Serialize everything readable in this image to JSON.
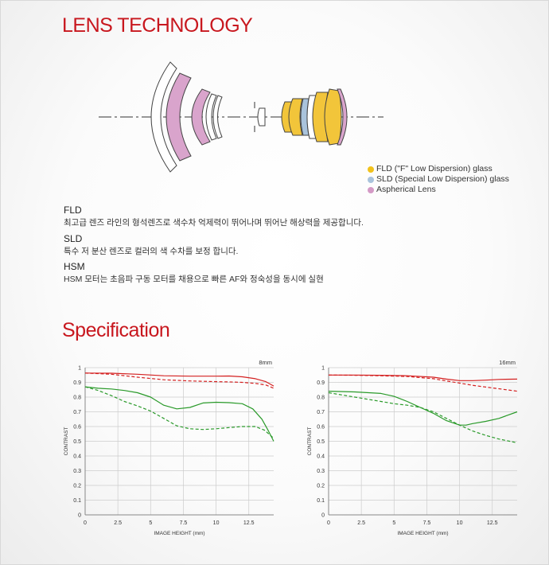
{
  "lens_section": {
    "title": "LENS TECHNOLOGY",
    "legend": [
      {
        "label": "FLD (\"F\" Low Dispersion) glass",
        "color": "#f1c21c"
      },
      {
        "label": "SLD (Special Low Dispersion) glass",
        "color": "#a9c3dc"
      },
      {
        "label": "Aspherical Lens",
        "color": "#d49ac6"
      }
    ],
    "technologies": [
      {
        "name": "FLD",
        "description": "최고급 렌즈 라인의 형석렌즈로 색수차 억제력이 뛰어나며 뛰어난 해상력을 제공합니다."
      },
      {
        "name": "SLD",
        "description": "특수 저 분산 렌즈로 컬러의 색 수차를 보정 합니다."
      },
      {
        "name": "HSM",
        "description": "HSM 모터는 초음파 구동 모터를 채용으로 빠른 AF와 정숙성을 동시에 실현"
      }
    ]
  },
  "spec_section": {
    "title": "Specification"
  },
  "colors": {
    "accent": "#c8171e",
    "sagittal": "#d42020",
    "meridional": "#2a9a2a",
    "grid": "#cccccc"
  },
  "chart_data": [
    {
      "type": "line",
      "title": "8mm",
      "xlabel": "IMAGE HEIGHT (mm)",
      "ylabel": "CONTRAST",
      "xlim": [
        0,
        14.4
      ],
      "ylim": [
        0,
        1
      ],
      "xticks": [
        "0",
        "2.5",
        "5",
        "7.5",
        "10",
        "12.5"
      ],
      "yticks": [
        "0",
        "0.1",
        "0.2",
        "0.3",
        "0.4",
        "0.5",
        "0.6",
        "0.7",
        "0.8",
        "0.9",
        "1"
      ],
      "grid": true,
      "series": [
        {
          "color": "#d42020",
          "dash": false,
          "x": [
            0,
            2,
            4,
            6,
            8,
            10,
            11,
            12,
            13,
            13.8,
            14.4
          ],
          "y": [
            0.963,
            0.962,
            0.955,
            0.945,
            0.942,
            0.942,
            0.943,
            0.938,
            0.925,
            0.905,
            0.875
          ]
        },
        {
          "color": "#d42020",
          "dash": true,
          "x": [
            0,
            2,
            4,
            6,
            8,
            10,
            11,
            12,
            13,
            13.8,
            14.4
          ],
          "y": [
            0.963,
            0.955,
            0.935,
            0.918,
            0.91,
            0.905,
            0.903,
            0.9,
            0.893,
            0.882,
            0.86
          ]
        },
        {
          "color": "#2a9a2a",
          "dash": false,
          "x": [
            0,
            1,
            2,
            3,
            4,
            5,
            6,
            7,
            8,
            9,
            10,
            11,
            12,
            12.8,
            13.5,
            14,
            14.4
          ],
          "y": [
            0.87,
            0.86,
            0.855,
            0.845,
            0.83,
            0.8,
            0.745,
            0.72,
            0.73,
            0.76,
            0.765,
            0.762,
            0.755,
            0.72,
            0.65,
            0.57,
            0.5
          ]
        },
        {
          "color": "#2a9a2a",
          "dash": true,
          "x": [
            0,
            1,
            2,
            3,
            4,
            5,
            6,
            7,
            8,
            9,
            10,
            11,
            12,
            13,
            13.7,
            14.4
          ],
          "y": [
            0.87,
            0.845,
            0.81,
            0.77,
            0.74,
            0.705,
            0.655,
            0.605,
            0.585,
            0.58,
            0.585,
            0.593,
            0.6,
            0.6,
            0.575,
            0.52
          ]
        }
      ]
    },
    {
      "type": "line",
      "title": "16mm",
      "xlabel": "IMAGE HEIGHT (mm)",
      "ylabel": "CONTRAST",
      "xlim": [
        0,
        14.4
      ],
      "ylim": [
        0,
        1
      ],
      "xticks": [
        "0",
        "2.5",
        "5",
        "7.5",
        "10",
        "12.5"
      ],
      "yticks": [
        "0",
        "0.1",
        "0.2",
        "0.3",
        "0.4",
        "0.5",
        "0.6",
        "0.7",
        "0.8",
        "0.9",
        "1"
      ],
      "grid": true,
      "series": [
        {
          "color": "#d42020",
          "dash": false,
          "x": [
            0,
            2,
            4,
            6,
            8,
            9,
            10,
            11,
            12,
            13,
            14.4
          ],
          "y": [
            0.95,
            0.95,
            0.948,
            0.945,
            0.935,
            0.922,
            0.912,
            0.912,
            0.915,
            0.92,
            0.922
          ]
        },
        {
          "color": "#d42020",
          "dash": true,
          "x": [
            0,
            2,
            4,
            6,
            8,
            9,
            10,
            11,
            12,
            13,
            14.4
          ],
          "y": [
            0.95,
            0.948,
            0.945,
            0.94,
            0.925,
            0.91,
            0.895,
            0.88,
            0.868,
            0.857,
            0.84
          ]
        },
        {
          "color": "#2a9a2a",
          "dash": false,
          "x": [
            0,
            2,
            4,
            5,
            6,
            7,
            8,
            9,
            10,
            10.5,
            11,
            12,
            13,
            14.4
          ],
          "y": [
            0.84,
            0.835,
            0.825,
            0.805,
            0.77,
            0.73,
            0.69,
            0.64,
            0.61,
            0.61,
            0.62,
            0.635,
            0.655,
            0.7
          ]
        },
        {
          "color": "#2a9a2a",
          "dash": true,
          "x": [
            0,
            2,
            4,
            5,
            6,
            7,
            8,
            9,
            10,
            11,
            12,
            13,
            14.4
          ],
          "y": [
            0.83,
            0.8,
            0.77,
            0.755,
            0.745,
            0.73,
            0.7,
            0.655,
            0.61,
            0.57,
            0.54,
            0.515,
            0.49
          ]
        }
      ]
    }
  ]
}
